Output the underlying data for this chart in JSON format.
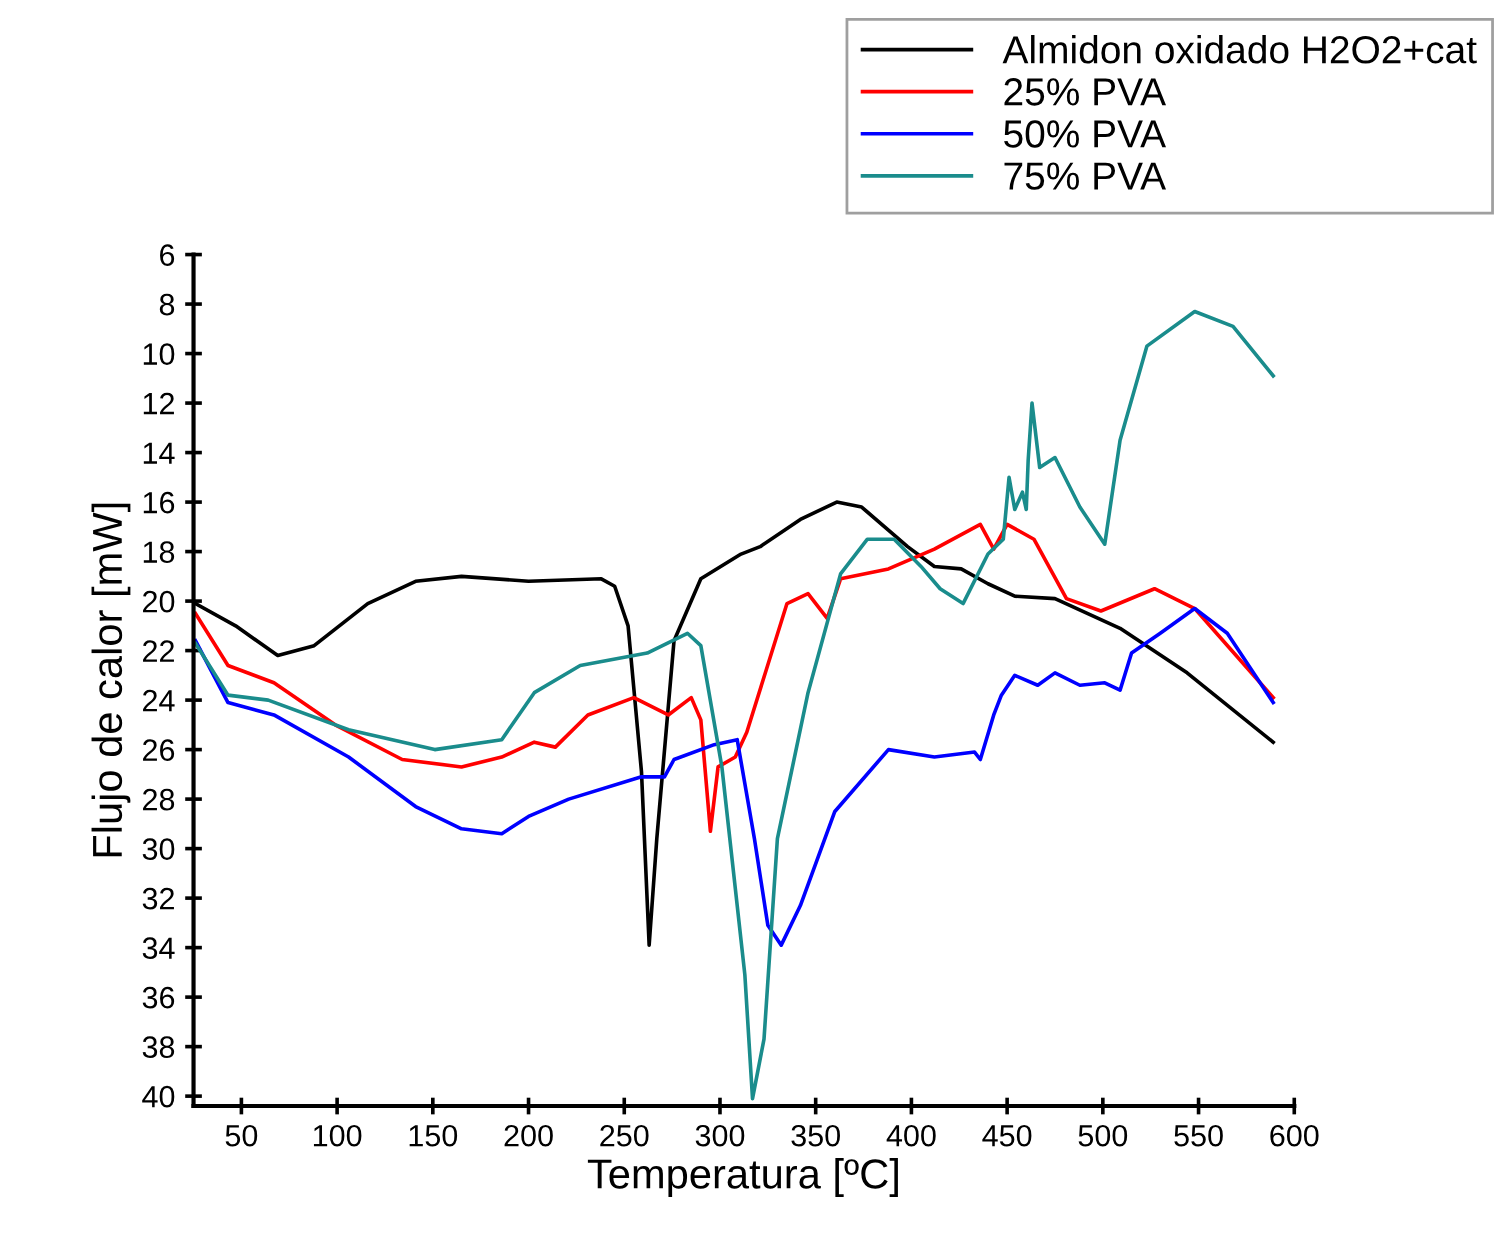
{
  "chart_data": {
    "type": "line",
    "xlabel": "Temperatura [ºC]",
    "ylabel": "Flujo de calor [mW]",
    "xlim": [
      25,
      600
    ],
    "xticks": [
      50,
      100,
      150,
      200,
      250,
      300,
      350,
      400,
      450,
      500,
      550,
      600
    ],
    "ylim": [
      40.4,
      6
    ],
    "yticks": [
      6,
      8,
      10,
      12,
      14,
      16,
      18,
      20,
      22,
      24,
      26,
      28,
      30,
      32,
      34,
      36,
      38,
      40
    ],
    "grid": false,
    "legend": "top right",
    "marker": "none",
    "line_style": "solid",
    "series": [
      {
        "name": "Almidon oxidado H2O2+cat",
        "color": "#000000",
        "x": [
          26,
          47,
          69,
          88,
          116,
          141,
          165,
          200,
          238,
          245,
          252,
          259,
          263,
          267,
          276,
          290,
          311,
          321,
          342,
          361,
          374,
          398,
          412,
          426,
          440,
          454,
          475,
          509,
          544,
          589
        ],
        "values": [
          20.1,
          21.0,
          22.2,
          21.8,
          20.1,
          19.2,
          19.0,
          19.2,
          19.1,
          19.4,
          21.0,
          26.9,
          33.9,
          29.6,
          21.6,
          19.1,
          18.1,
          17.8,
          16.7,
          16.0,
          16.2,
          17.8,
          18.6,
          18.7,
          19.3,
          19.8,
          19.9,
          21.1,
          22.9,
          25.7
        ]
      },
      {
        "name": "25% PVA",
        "color": "#ff0000",
        "x": [
          26,
          43,
          67,
          99,
          134,
          165,
          186,
          203,
          214,
          231,
          255,
          273,
          285,
          290,
          295,
          299,
          308,
          314,
          335,
          346,
          356,
          363,
          388,
          412,
          436,
          443,
          450,
          464,
          481,
          499,
          527,
          548,
          589
        ],
        "values": [
          20.5,
          22.6,
          23.3,
          25.0,
          26.4,
          26.7,
          26.3,
          25.7,
          25.9,
          24.6,
          23.9,
          24.6,
          23.9,
          24.8,
          29.3,
          26.7,
          26.3,
          25.3,
          20.1,
          19.7,
          20.7,
          19.1,
          18.7,
          17.9,
          16.9,
          17.9,
          16.9,
          17.5,
          19.9,
          20.4,
          19.5,
          20.3,
          23.9
        ]
      },
      {
        "name": "50% PVA",
        "color": "#0000ff",
        "x": [
          26,
          43,
          67,
          106,
          141,
          165,
          186,
          200,
          221,
          259,
          271,
          276,
          297,
          309,
          318,
          325,
          332,
          342,
          360,
          388,
          412,
          433,
          436,
          443,
          447,
          454,
          466,
          475,
          488,
          501,
          509,
          515,
          530,
          548,
          565,
          589
        ],
        "values": [
          21.6,
          24.1,
          24.6,
          26.3,
          28.3,
          29.2,
          29.4,
          28.7,
          28.0,
          27.1,
          27.1,
          26.4,
          25.8,
          25.6,
          29.6,
          33.1,
          33.9,
          32.3,
          28.5,
          26.0,
          26.3,
          26.1,
          26.4,
          24.6,
          23.8,
          23.0,
          23.4,
          22.9,
          23.4,
          23.3,
          23.6,
          22.1,
          21.3,
          20.3,
          21.3,
          24.1
        ]
      },
      {
        "name": "75% PVA",
        "color": "#1a8c8c",
        "x": [
          26,
          43,
          64,
          106,
          151,
          186,
          203,
          227,
          262,
          283,
          290,
          301,
          313,
          317,
          323,
          330,
          346,
          363,
          377,
          391,
          405,
          415,
          427,
          440,
          448,
          451,
          454,
          458,
          460,
          461,
          463,
          467,
          475,
          488,
          501,
          509,
          523,
          548,
          568,
          589
        ],
        "values": [
          21.7,
          23.8,
          24.0,
          25.2,
          26.0,
          25.6,
          23.7,
          22.6,
          22.1,
          21.3,
          21.8,
          26.7,
          35.1,
          40.1,
          37.7,
          29.6,
          23.7,
          18.9,
          17.5,
          17.5,
          18.6,
          19.5,
          20.1,
          18.1,
          17.5,
          15.0,
          16.3,
          15.6,
          16.3,
          14.3,
          12.0,
          14.6,
          14.2,
          16.2,
          17.7,
          13.5,
          9.7,
          8.3,
          8.9,
          10.9
        ]
      }
    ]
  }
}
